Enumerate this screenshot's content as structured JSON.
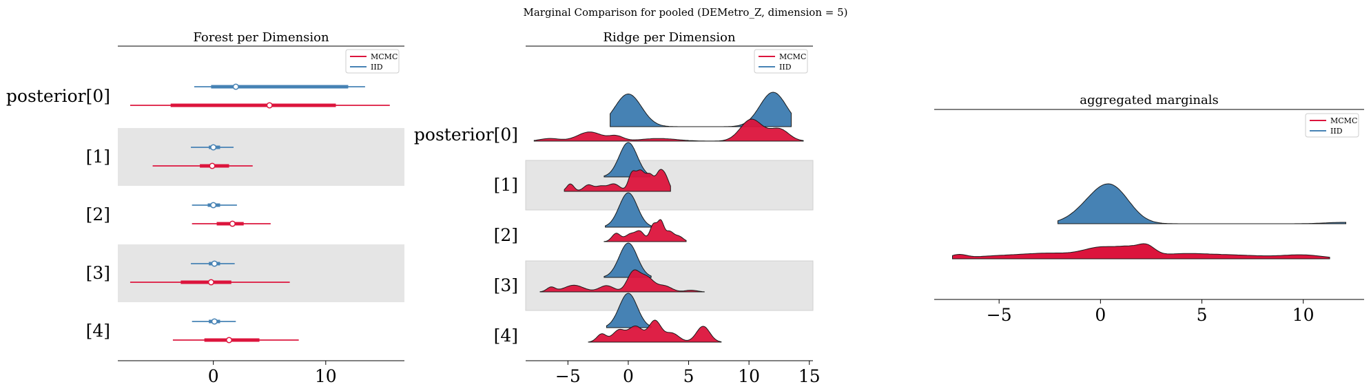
{
  "colors": {
    "mcmc": "#dc143c",
    "iid": "#4682b4",
    "band": "#e5e5e5"
  },
  "suptitle": "Marginal Comparison for pooled (DEMetro_Z, dimension = 5)",
  "chart_data": [
    {
      "type": "forest",
      "title": "Forest per Dimension",
      "ylabels": [
        "posterior[0]",
        "[1]",
        "[2]",
        "[3]",
        "[4]"
      ],
      "xlim": [
        -8.5,
        17
      ],
      "xticks": [
        0,
        10
      ],
      "legend": {
        "placement": "top-right",
        "entries": [
          "MCMC",
          "IID"
        ]
      },
      "series": [
        {
          "name": "IID",
          "rows": [
            {
              "hdi94": [
                -1.7,
                13.5
              ],
              "iqr": [
                -0.2,
                12
              ],
              "point": 2.0
            },
            {
              "hdi94": [
                -2.0,
                1.8
              ],
              "iqr": [
                -0.4,
                0.6
              ],
              "point": 0.0
            },
            {
              "hdi94": [
                -1.9,
                2.1
              ],
              "iqr": [
                -0.5,
                0.6
              ],
              "point": 0.0
            },
            {
              "hdi94": [
                -2.0,
                1.9
              ],
              "iqr": [
                -0.4,
                0.6
              ],
              "point": 0.1
            },
            {
              "hdi94": [
                -1.9,
                2.0
              ],
              "iqr": [
                -0.4,
                0.6
              ],
              "point": 0.1
            }
          ]
        },
        {
          "name": "MCMC",
          "rows": [
            {
              "hdi94": [
                -7.4,
                15.7
              ],
              "iqr": [
                -3.8,
                10.9
              ],
              "point": 5.0
            },
            {
              "hdi94": [
                -5.4,
                3.5
              ],
              "iqr": [
                -1.2,
                1.4
              ],
              "point": -0.1
            },
            {
              "hdi94": [
                -1.9,
                5.1
              ],
              "iqr": [
                0.3,
                2.7
              ],
              "point": 1.7
            },
            {
              "hdi94": [
                -7.4,
                6.8
              ],
              "iqr": [
                -2.9,
                1.6
              ],
              "point": -0.2
            },
            {
              "hdi94": [
                -3.6,
                7.6
              ],
              "iqr": [
                -0.8,
                4.1
              ],
              "point": 1.4
            }
          ]
        }
      ]
    },
    {
      "type": "ridge",
      "title": "Ridge per Dimension",
      "ylabels": [
        "posterior[0]",
        "[1]",
        "[2]",
        "[3]",
        "[4]"
      ],
      "xlim": [
        -8.5,
        15.3
      ],
      "xticks": [
        -5,
        0,
        5,
        10,
        15
      ],
      "legend": {
        "placement": "top-right",
        "entries": [
          "MCMC",
          "IID"
        ]
      },
      "series": [
        {
          "name": "IID",
          "rows": [
            {
              "range": [
                -1.5,
                13.5
              ],
              "modes": [
                [
                  0,
                  1.1,
                  0.95
                ],
                [
                  12,
                  1.1,
                  1
                ]
              ]
            },
            {
              "range": [
                -2.0,
                1.8
              ],
              "modes": [
                [
                  0,
                  0.75,
                  1
                ]
              ]
            },
            {
              "range": [
                -1.9,
                1.9
              ],
              "modes": [
                [
                  0,
                  0.75,
                  1
                ]
              ]
            },
            {
              "range": [
                -2.0,
                1.9
              ],
              "modes": [
                [
                  0,
                  0.75,
                  1
                ]
              ]
            },
            {
              "range": [
                -1.8,
                1.9
              ],
              "modes": [
                [
                  0,
                  0.75,
                  1
                ]
              ]
            }
          ]
        },
        {
          "name": "MCMC",
          "rows": [
            {
              "range": [
                -7.8,
                14.5
              ],
              "modes": [
                [
                  -6.5,
                  0.8,
                  0.12
                ],
                [
                  -3.2,
                  1.0,
                  0.42
                ],
                [
                  -1.0,
                  0.6,
                  0.22
                ],
                [
                  2.5,
                  1.5,
                  0.12
                ],
                [
                  10.2,
                  0.9,
                  1
                ],
                [
                  12.5,
                  0.8,
                  0.55
                ]
              ]
            },
            {
              "range": [
                -5.3,
                3.5
              ],
              "modes": [
                [
                  -4.8,
                  0.3,
                  0.35
                ],
                [
                  -3.3,
                  0.4,
                  0.3
                ],
                [
                  -2.3,
                  0.4,
                  0.22
                ],
                [
                  -1.2,
                  0.5,
                  0.35
                ],
                [
                  0.3,
                  0.3,
                  0.8
                ],
                [
                  1.0,
                  0.35,
                  0.9
                ],
                [
                  1.8,
                  0.35,
                  0.75
                ],
                [
                  2.6,
                  0.3,
                  0.8
                ],
                [
                  3.1,
                  0.3,
                  0.6
                ]
              ]
            },
            {
              "range": [
                -2.0,
                4.8
              ],
              "modes": [
                [
                  -1.0,
                  0.35,
                  0.45
                ],
                [
                  0.2,
                  0.45,
                  0.42
                ],
                [
                  1.0,
                  0.35,
                  0.5
                ],
                [
                  2.1,
                  0.3,
                  0.95
                ],
                [
                  2.7,
                  0.25,
                  1
                ],
                [
                  3.4,
                  0.35,
                  0.55
                ],
                [
                  4.2,
                  0.35,
                  0.28
                ]
              ]
            },
            {
              "range": [
                -7.3,
                6.3
              ],
              "modes": [
                [
                  -6.4,
                  0.35,
                  0.22
                ],
                [
                  -4.5,
                  0.8,
                  0.32
                ],
                [
                  -1.8,
                  0.6,
                  0.3
                ],
                [
                  0.4,
                  0.5,
                  0.9
                ],
                [
                  1.5,
                  0.6,
                  0.7
                ],
                [
                  3.0,
                  0.6,
                  0.28
                ],
                [
                  5.2,
                  0.5,
                  0.08
                ]
              ]
            },
            {
              "range": [
                -3.3,
                7.7
              ],
              "modes": [
                [
                  -2.2,
                  0.4,
                  0.32
                ],
                [
                  -0.8,
                  0.5,
                  0.45
                ],
                [
                  0.6,
                  0.6,
                  0.62
                ],
                [
                  2.2,
                  0.5,
                  0.82
                ],
                [
                  3.6,
                  0.6,
                  0.35
                ],
                [
                  6.2,
                  0.55,
                  0.62
                ]
              ]
            }
          ]
        }
      ]
    },
    {
      "type": "density",
      "title": "aggregated marginals",
      "xlim": [
        -8.2,
        13
      ],
      "xticks": [
        -5,
        0,
        5,
        10
      ],
      "legend": {
        "placement": "top-right",
        "entries": [
          "MCMC",
          "IID"
        ]
      },
      "series": [
        {
          "name": "IID",
          "range": [
            -2.1,
            12.1
          ],
          "modes": [
            [
              0,
              1.0,
              1.0
            ],
            [
              0.8,
              0.8,
              0.6
            ],
            [
              12,
              0.9,
              0.05
            ]
          ]
        },
        {
          "name": "MCMC",
          "range": [
            -7.3,
            11.3
          ],
          "modes": [
            [
              -7,
              0.4,
              0.12
            ],
            [
              -5.2,
              1.2,
              0.08
            ],
            [
              -2.5,
              1.4,
              0.18
            ],
            [
              0.1,
              0.9,
              0.35
            ],
            [
              1.5,
              0.6,
              0.25
            ],
            [
              2.3,
              0.4,
              0.28
            ],
            [
              4.0,
              1.5,
              0.16
            ],
            [
              7.0,
              1.5,
              0.1
            ],
            [
              10.0,
              1.0,
              0.12
            ]
          ]
        }
      ]
    }
  ]
}
